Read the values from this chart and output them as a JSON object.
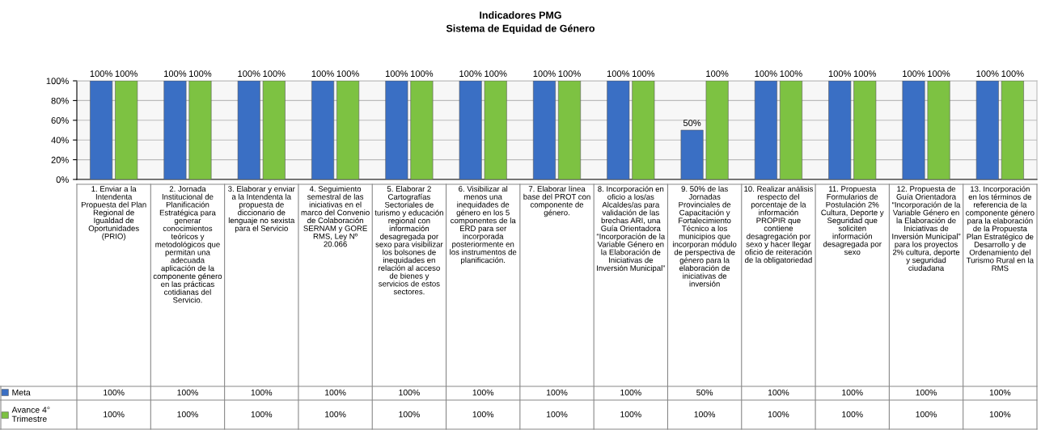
{
  "chart_data": {
    "type": "bar",
    "title": "Indicadores PMG\nSistema de Equidad de Género",
    "categories": [
      "1. Enviar a la Intendenta Propuesta del Plan Regional de Igualdad de Oportunidades (PRIO)",
      "2. Jornada Institucional de Planificación Estratégica para generar conocimientos teóricos y metodológicos que permitan una adecuada aplicación de la componente género en las prácticas cotidianas del Servicio.",
      "3. Elaborar y enviar a la Intendenta la propuesta de diccionario de lenguaje no sexista para el Servicio",
      "4. Seguimiento semestral de las iniciativas en el marco del Convenio de Colaboración SERNAM y GORE RMS, Ley Nº 20.066",
      "5. Elaborar 2 Cartografías Sectoriales de turismo y educación regional con información desagregada por sexo para visibilizar los bolsones de inequidades en relación al acceso de bienes y servicios de estos sectores.",
      "6. Visibilizar al menos una inequidades de género en los 5 componentes de la ERD para ser incorporada posteriormente en los instrumentos de planificación.",
      "7. Elaborar línea base del PROT con componente de género.",
      "8. Incorporación en oficio a los/as Alcaldes/as para validación de las brechas ARI, una Guía Orientadora “Incorporación de la Variable Género en la Elaboración de Iniciativas de Inversión Municipal”",
      "9. 50% de las Jornadas Provinciales de Capacitación y Fortalecimiento Técnico a los municipios que incorporan módulo de perspectiva de género para la elaboración de iniciativas de inversión",
      "10. Realizar análisis respecto del porcentaje de la información PROPIR que contiene desagregación por sexo y hacer llegar oficio de reiteración de la obligatoriedad",
      "11. Propuesta Formularios de Postulación 2% Cultura, Deporte y Seguridad que soliciten información desagregada por sexo",
      "12. Propuesta de Guía Orientadora “Incorporación de la Variable Género en la Elaboración de Iniciativas de Inversión Municipal” para los proyectos 2% cultura, deporte y seguridad ciudadana",
      "13. Incorporación en los términos de referencia de la componente género para la elaboración de la Propuesta Plan Estratégico de Desarrollo y de Ordenamiento del Turismo Rural en la RMS"
    ],
    "series": [
      {
        "name": "Meta",
        "color": "#3a6fc4",
        "values": [
          100,
          100,
          100,
          100,
          100,
          100,
          100,
          100,
          50,
          100,
          100,
          100,
          100
        ],
        "value_labels": [
          "100%",
          "100%",
          "100%",
          "100%",
          "100%",
          "100%",
          "100%",
          "100%",
          "50%",
          "100%",
          "100%",
          "100%",
          "100%"
        ]
      },
      {
        "name": "Avance 4° Trimestre",
        "color": "#7dc242",
        "values": [
          100,
          100,
          100,
          100,
          100,
          100,
          100,
          100,
          100,
          100,
          100,
          100,
          100
        ],
        "value_labels": [
          "100%",
          "100%",
          "100%",
          "100%",
          "100%",
          "100%",
          "100%",
          "100%",
          "100%",
          "100%",
          "100%",
          "100%",
          "100%"
        ]
      }
    ],
    "ylim": [
      0,
      100
    ],
    "yticks": [
      {
        "value": 0,
        "label": "0%"
      },
      {
        "value": 20,
        "label": "20%"
      },
      {
        "value": 40,
        "label": "40%"
      },
      {
        "value": 60,
        "label": "60%"
      },
      {
        "value": 80,
        "label": "80%"
      },
      {
        "value": 100,
        "label": "100%"
      }
    ],
    "grid": "y",
    "legend": "bottom left"
  }
}
